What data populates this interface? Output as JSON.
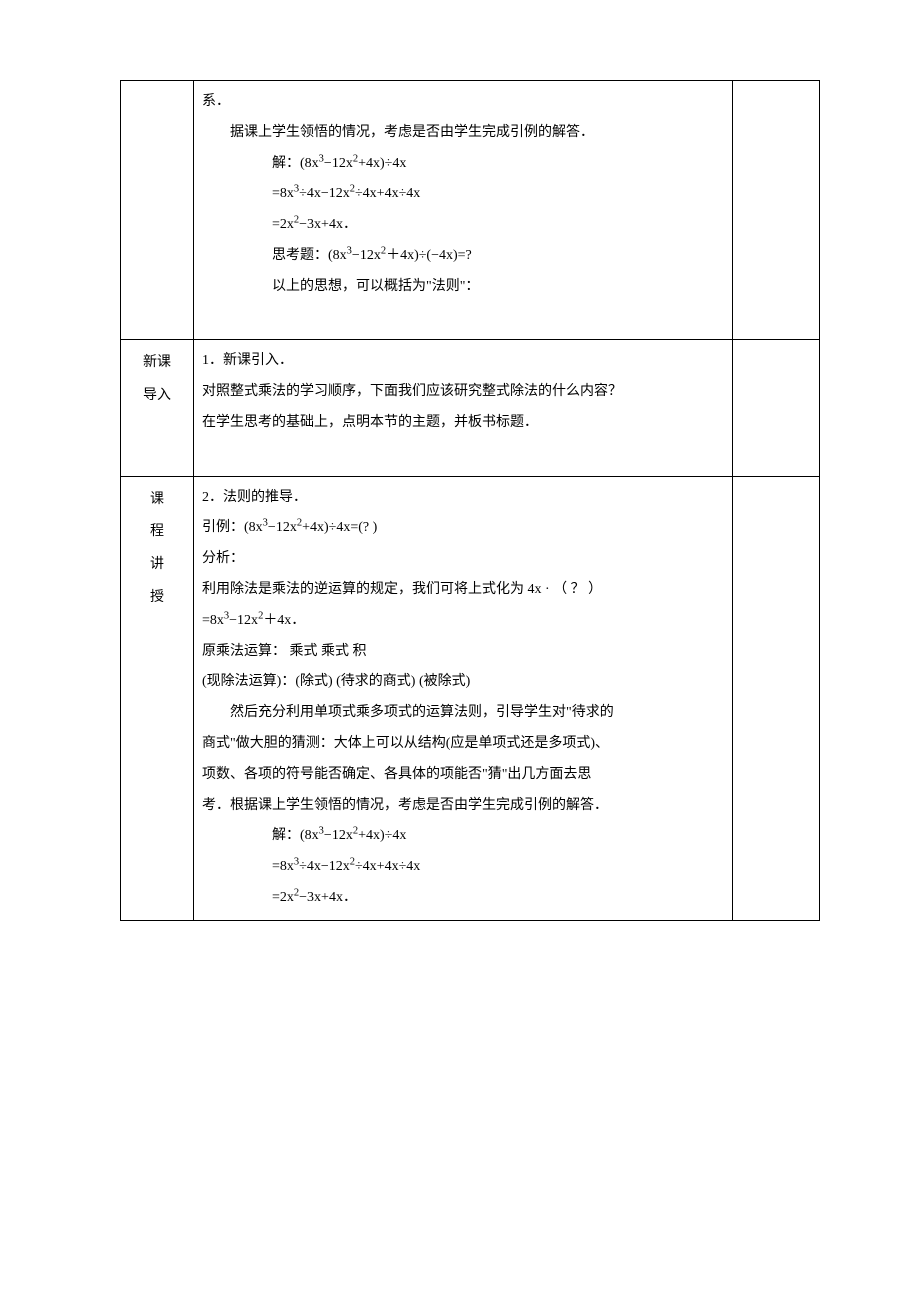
{
  "row1": {
    "line1": "系．",
    "line2": "据课上学生领悟的情况，考虑是否由学生完成引例的解答．",
    "solve_label": "解：(8x",
    "solve_eq": "−12x",
    "solve_eq2": "+4x)÷4x",
    "step1a": "=8x",
    "step1b": "÷4x−12x",
    "step1c": "÷4x+4x÷4x",
    "step2a": "=2x",
    "step2b": "−3x+4x．",
    "think": "思考题：(8x",
    "think2": "−12x",
    "think3": "＋4x)÷(−4x)=?",
    "summary": "以上的思想，可以概括为\"法则\"："
  },
  "row2": {
    "side_l1": "新课",
    "side_l2": "导入",
    "line1": "1．新课引入．",
    "line2": "对照整式乘法的学习顺序，下面我们应该研究整式除法的什么内容？",
    "line3": "在学生思考的基础上，点明本节的主题，并板书标题．"
  },
  "row3": {
    "side_l1": "课",
    "side_l2": "程",
    "side_l3": "讲",
    "side_l4": "授",
    "line1": "2．法则的推导．",
    "ex_a": "引例：(8x",
    "ex_b": "−12x",
    "ex_c": "+4x)÷4x=(?  )",
    "line3": "分析：",
    "line4": "利用除法是乘法的逆运算的规定，我们可将上式化为 4x · （ ？ ）",
    "line5a": "=8x",
    "line5b": "−12x",
    "line5c": "＋4x．",
    "line6": "原乘法运算：  乘式    乘式    积",
    "line7": "(现除法运算)：(除式)  (待求的商式)  (被除式)",
    "line8": "然后充分利用单项式乘多项式的运算法则，引导学生对\"待求的",
    "line9": "商式\"做大胆的猜测：大体上可以从结构(应是单项式还是多项式)、",
    "line10": "项数、各项的符号能否确定、各具体的项能否\"猜\"出几方面去思",
    "line11": "考．根据课上学生领悟的情况，考虑是否由学生完成引例的解答．",
    "solve_label": "解：(8x",
    "solve_eq": "−12x",
    "solve_eq2": "+4x)÷4x",
    "step1a": "=8x",
    "step1b": "÷4x−12x",
    "step1c": "÷4x+4x÷4x",
    "step2a": "=2x",
    "step2b": "−3x+4x．"
  },
  "exp3": "3",
  "exp2": "2"
}
